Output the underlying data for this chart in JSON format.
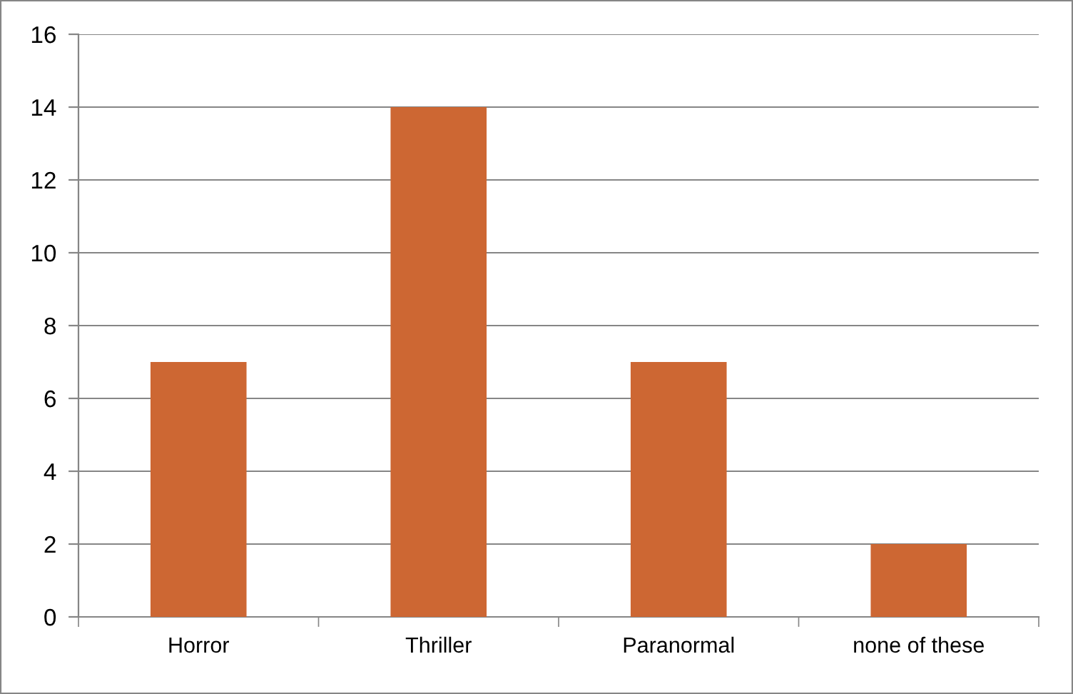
{
  "chart_data": {
    "type": "bar",
    "categories": [
      "Horror",
      "Thriller",
      "Paranormal",
      "none of these"
    ],
    "values": [
      7,
      14,
      7,
      2
    ],
    "color": "#cd6733",
    "ylim": [
      0,
      16
    ],
    "yticks": [
      0,
      2,
      4,
      6,
      8,
      10,
      12,
      14,
      16
    ],
    "grid": "y"
  }
}
